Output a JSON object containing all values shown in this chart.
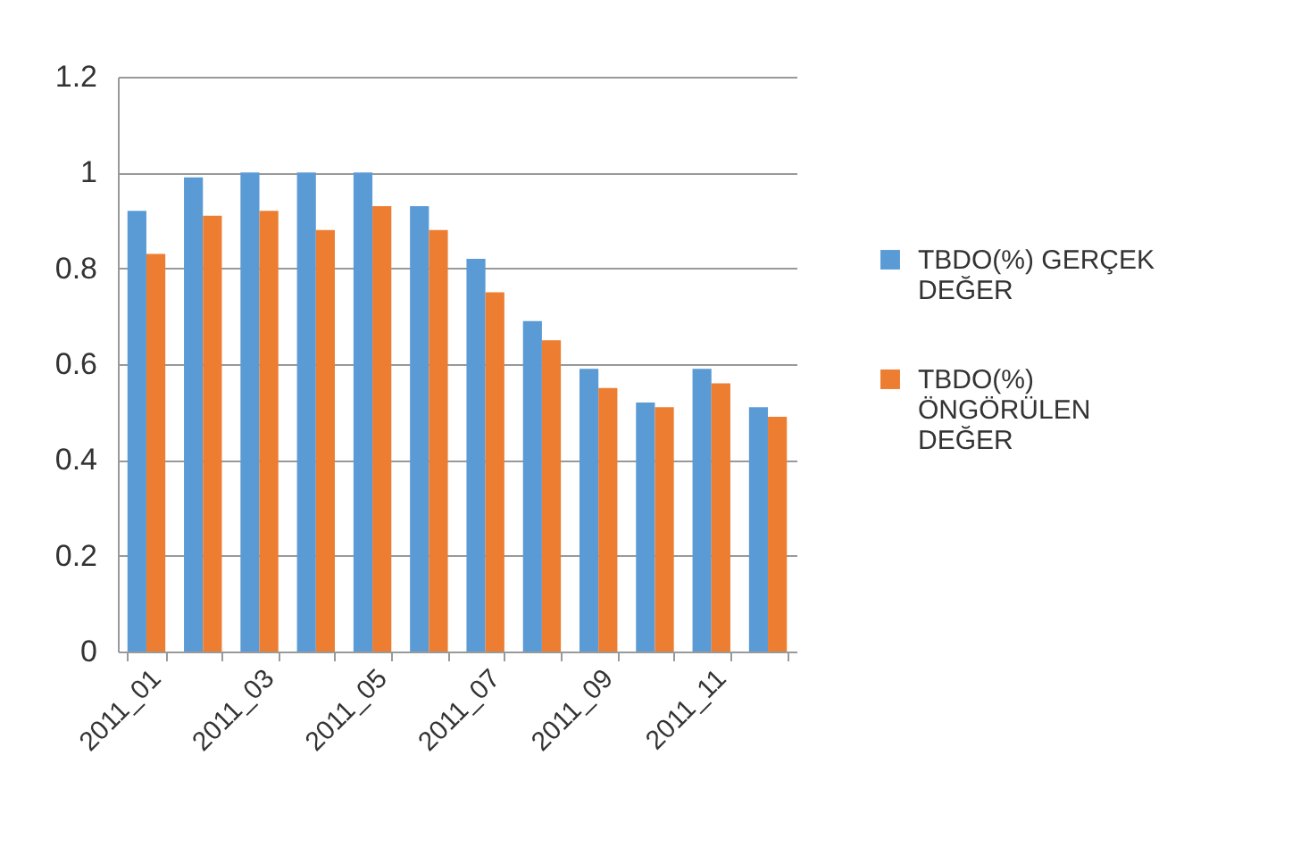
{
  "chart_data": {
    "type": "bar",
    "categories": [
      "2011_01",
      null,
      "2011_03",
      null,
      "2011_05",
      null,
      "2011_07",
      null,
      "2011_09",
      null,
      "2011_11",
      null
    ],
    "series": [
      {
        "name": "TBDO(%) GERÇEK DEĞER",
        "color": "#5b9bd5",
        "values": [
          0.92,
          0.99,
          1.0,
          1.0,
          1.0,
          0.93,
          0.82,
          0.69,
          0.59,
          0.52,
          0.59,
          0.51
        ]
      },
      {
        "name": "TBDO(%) ÖNGÖRÜLEN DEĞER",
        "color": "#ed7d31",
        "values": [
          0.83,
          0.91,
          0.92,
          0.88,
          0.93,
          0.88,
          0.75,
          0.65,
          0.55,
          0.51,
          0.56,
          0.49
        ]
      }
    ],
    "ylim": [
      0,
      1.2
    ],
    "yticks": [
      0,
      0.2,
      0.4,
      0.6,
      0.8,
      1,
      1.2
    ],
    "grid": "y",
    "legend": "right"
  }
}
